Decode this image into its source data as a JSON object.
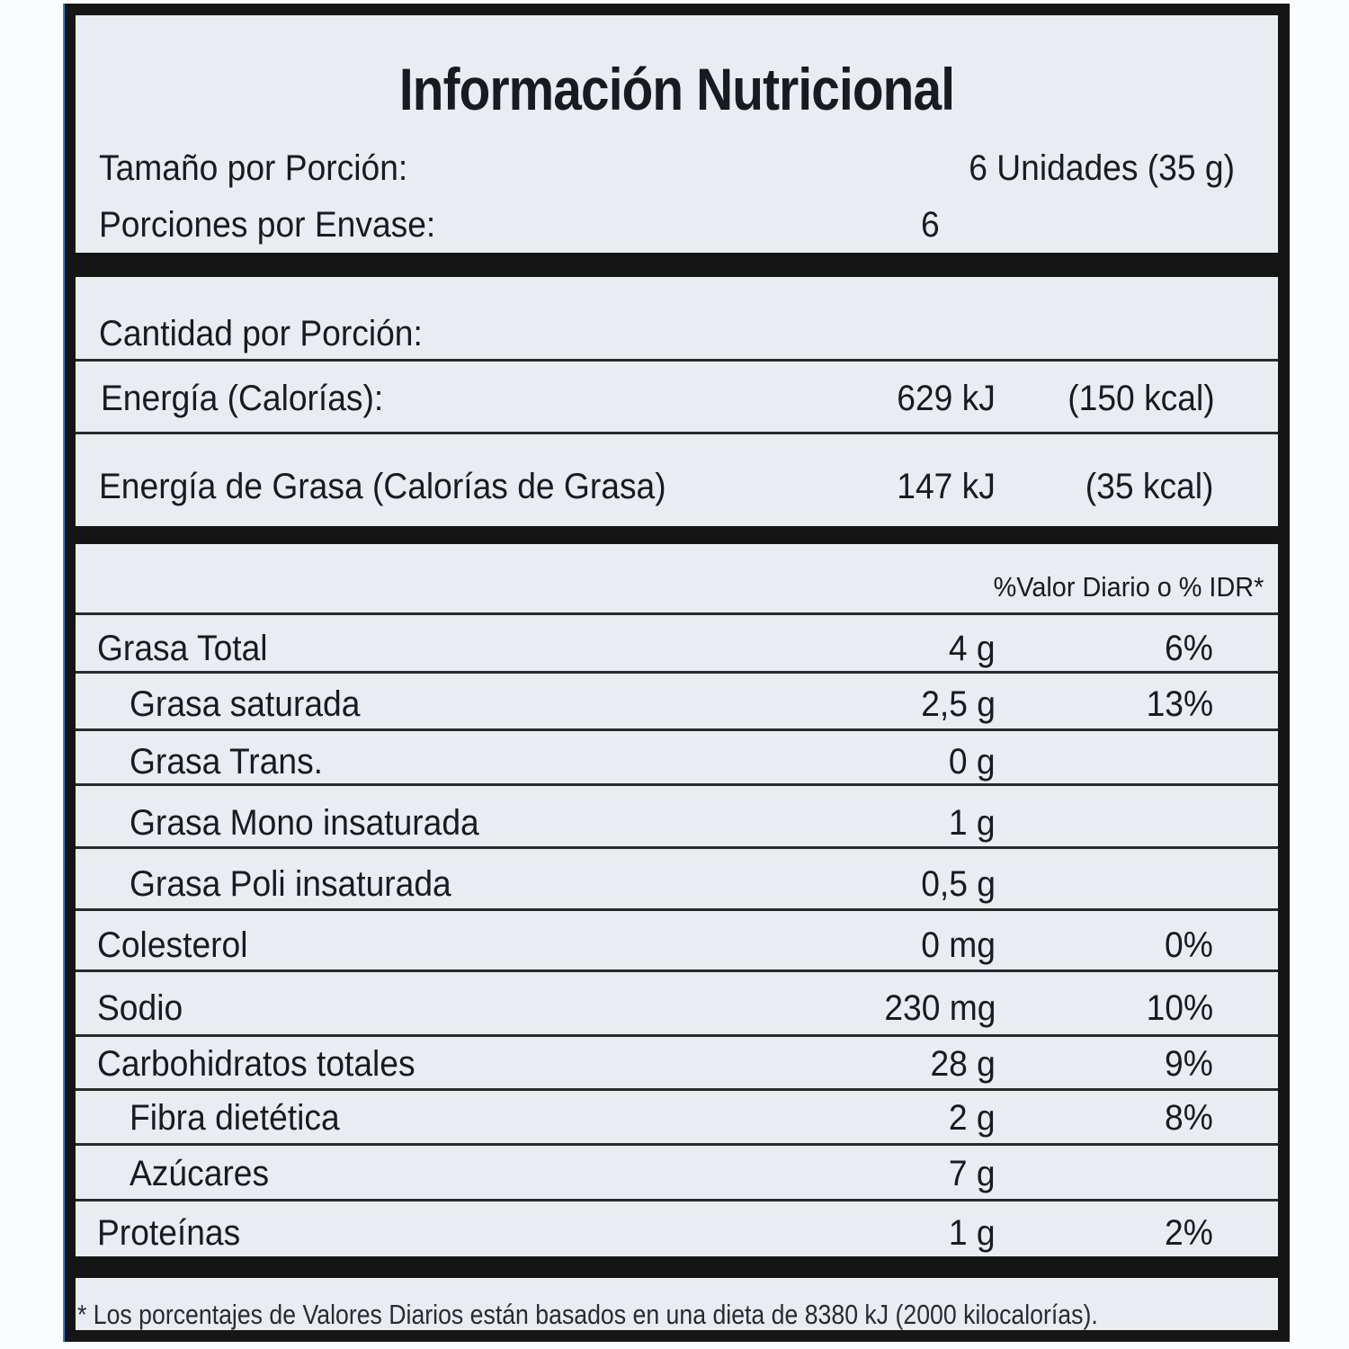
{
  "title": "Información Nutricional",
  "serving": {
    "size_label": "Tamaño por Porción:",
    "size_value": "6 Unidades (35 g)",
    "servings_label": "Porciones por Envase:",
    "servings_value": "6"
  },
  "amount_per_serving": "Cantidad por Porción:",
  "energy": [
    {
      "label": "Energía (Calorías):",
      "kj": "629 kJ",
      "kcal": "(150 kcal)"
    },
    {
      "label": "Energía de Grasa (Calorías de Grasa)",
      "kj": "147 kJ",
      "kcal": "(35 kcal)"
    }
  ],
  "dv_header": "%Valor Diario o % IDR*",
  "nutrients": [
    {
      "name": "Grasa Total",
      "amount": "4 g",
      "dv": "6%",
      "indent": 0
    },
    {
      "name": "Grasa saturada",
      "amount": "2,5 g",
      "dv": "13%",
      "indent": 1
    },
    {
      "name": "Grasa Trans.",
      "amount": "0 g",
      "dv": "",
      "indent": 1
    },
    {
      "name": "Grasa Mono insaturada",
      "amount": "1 g",
      "dv": "",
      "indent": 1
    },
    {
      "name": "Grasa Poli insaturada",
      "amount": "0,5 g",
      "dv": "",
      "indent": 1
    },
    {
      "name": "Colesterol",
      "amount": "0 mg",
      "dv": "0%",
      "indent": 0
    },
    {
      "name": "Sodio",
      "amount": "230 mg",
      "dv": "10%",
      "indent": 0
    },
    {
      "name": "Carbohidratos totales",
      "amount": "28 g",
      "dv": "9%",
      "indent": 0
    },
    {
      "name": "Fibra dietética",
      "amount": "2 g",
      "dv": "8%",
      "indent": 1
    },
    {
      "name": "Azúcares",
      "amount": "7 g",
      "dv": "",
      "indent": 1
    },
    {
      "name": "Proteínas",
      "amount": "1 g",
      "dv": "2%",
      "indent": 0
    }
  ],
  "footnote": "* Los porcentajes de Valores Diarios están basados en una dieta de 8380 kJ (2000 kilocalorías)."
}
